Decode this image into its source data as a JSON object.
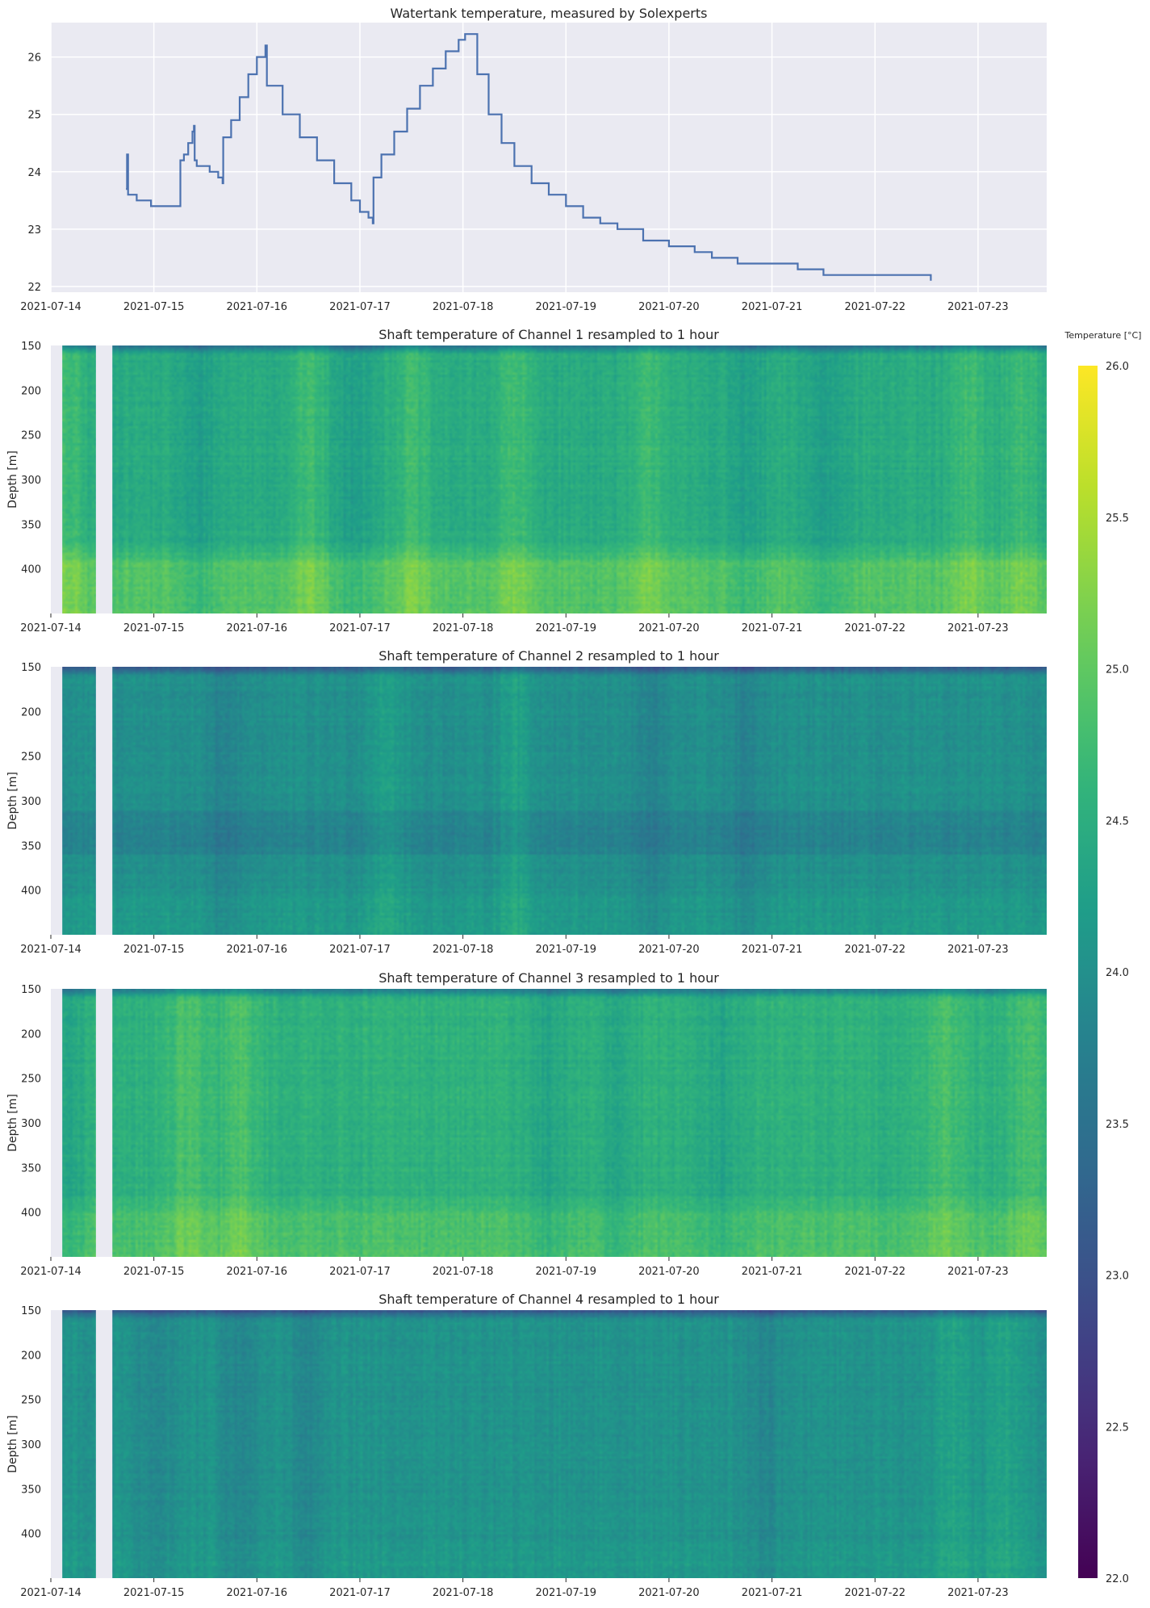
{
  "chart_data": [
    {
      "type": "line",
      "title": "Watertank temperature, measured by Solexperts",
      "xlabel": "",
      "ylabel": "",
      "xlim": [
        "2021-07-14",
        "2021-07-23 16:00"
      ],
      "ylim": [
        21.9,
        26.6
      ],
      "x_ticks": [
        "2021-07-14",
        "2021-07-15",
        "2021-07-16",
        "2021-07-17",
        "2021-07-18",
        "2021-07-19",
        "2021-07-20",
        "2021-07-21",
        "2021-07-22",
        "2021-07-23"
      ],
      "y_ticks": [
        "22",
        "23",
        "24",
        "25",
        "26"
      ],
      "grid": true,
      "series": [
        {
          "color": "#4c72b0",
          "points": [
            [
              "2021-07-14 17:30",
              23.7
            ],
            [
              "2021-07-14 17:45",
              24.3
            ],
            [
              "2021-07-14 18:00",
              23.6
            ],
            [
              "2021-07-14 19:30",
              23.6
            ],
            [
              "2021-07-14 20:00",
              23.5
            ],
            [
              "2021-07-14 23:00",
              23.5
            ],
            [
              "2021-07-14 23:20",
              23.4
            ],
            [
              "2021-07-15 06:00",
              23.4
            ],
            [
              "2021-07-15 06:10",
              24.2
            ],
            [
              "2021-07-15 07:00",
              24.3
            ],
            [
              "2021-07-15 08:00",
              24.5
            ],
            [
              "2021-07-15 09:00",
              24.7
            ],
            [
              "2021-07-15 09:20",
              24.8
            ],
            [
              "2021-07-15 09:30",
              24.2
            ],
            [
              "2021-07-15 10:00",
              24.1
            ],
            [
              "2021-07-15 12:00",
              24.1
            ],
            [
              "2021-07-15 13:00",
              24.0
            ],
            [
              "2021-07-15 15:00",
              23.9
            ],
            [
              "2021-07-15 16:00",
              23.8
            ],
            [
              "2021-07-15 16:10",
              24.6
            ],
            [
              "2021-07-15 18:00",
              24.9
            ],
            [
              "2021-07-15 20:00",
              25.3
            ],
            [
              "2021-07-15 22:00",
              25.7
            ],
            [
              "2021-07-16 00:00",
              26.0
            ],
            [
              "2021-07-16 02:00",
              26.2
            ],
            [
              "2021-07-16 02:20",
              25.5
            ],
            [
              "2021-07-16 06:00",
              25.0
            ],
            [
              "2021-07-16 10:00",
              24.6
            ],
            [
              "2021-07-16 14:00",
              24.2
            ],
            [
              "2021-07-16 18:00",
              23.8
            ],
            [
              "2021-07-16 22:00",
              23.5
            ],
            [
              "2021-07-17 00:00",
              23.3
            ],
            [
              "2021-07-17 02:00",
              23.2
            ],
            [
              "2021-07-17 03:00",
              23.1
            ],
            [
              "2021-07-17 03:10",
              23.9
            ],
            [
              "2021-07-17 05:00",
              24.3
            ],
            [
              "2021-07-17 08:00",
              24.7
            ],
            [
              "2021-07-17 11:00",
              25.1
            ],
            [
              "2021-07-17 14:00",
              25.5
            ],
            [
              "2021-07-17 17:00",
              25.8
            ],
            [
              "2021-07-17 20:00",
              26.1
            ],
            [
              "2021-07-17 23:00",
              26.3
            ],
            [
              "2021-07-18 00:30",
              26.4
            ],
            [
              "2021-07-18 03:00",
              26.4
            ],
            [
              "2021-07-18 03:20",
              25.7
            ],
            [
              "2021-07-18 06:00",
              25.0
            ],
            [
              "2021-07-18 09:00",
              24.5
            ],
            [
              "2021-07-18 12:00",
              24.1
            ],
            [
              "2021-07-18 16:00",
              23.8
            ],
            [
              "2021-07-18 20:00",
              23.6
            ],
            [
              "2021-07-19 00:00",
              23.4
            ],
            [
              "2021-07-19 04:00",
              23.2
            ],
            [
              "2021-07-19 08:00",
              23.1
            ],
            [
              "2021-07-19 12:00",
              23.0
            ],
            [
              "2021-07-19 18:00",
              22.8
            ],
            [
              "2021-07-20 00:00",
              22.7
            ],
            [
              "2021-07-20 06:00",
              22.6
            ],
            [
              "2021-07-20 10:00",
              22.5
            ],
            [
              "2021-07-20 16:00",
              22.4
            ],
            [
              "2021-07-21 02:00",
              22.4
            ],
            [
              "2021-07-21 06:00",
              22.3
            ],
            [
              "2021-07-21 12:00",
              22.2
            ],
            [
              "2021-07-22 00:00",
              22.2
            ],
            [
              "2021-07-22 12:00",
              22.2
            ],
            [
              "2021-07-22 13:00",
              22.1
            ]
          ]
        }
      ]
    },
    {
      "type": "heatmap",
      "title": "Shaft temperature of Channel 1 resampled to 1 hour",
      "xlabel": "",
      "ylabel": "Depth [m]",
      "xlim": [
        "2021-07-14",
        "2021-07-23 16:00"
      ],
      "ylim": [
        450,
        150
      ],
      "x_ticks": [
        "2021-07-14",
        "2021-07-15",
        "2021-07-16",
        "2021-07-17",
        "2021-07-18",
        "2021-07-19",
        "2021-07-20",
        "2021-07-21",
        "2021-07-22",
        "2021-07-23"
      ],
      "y_ticks": [
        "150",
        "200",
        "250",
        "300",
        "350",
        "400"
      ],
      "missing_intervals": [
        [
          "2021-07-14 00:00",
          "2021-07-14 02:40"
        ],
        [
          "2021-07-14 10:30",
          "2021-07-14 14:20"
        ]
      ],
      "value_range": [
        22.0,
        26.0
      ],
      "mean_temperature": 24.45,
      "depth_profile": {
        "top_c": 23.5,
        "lower_depth_m": 370,
        "lower_offset_c": 0.45
      },
      "warm_dates": [
        "2021-07-14 04:00",
        "2021-07-16 12:00",
        "2021-07-17 12:00",
        "2021-07-18 12:00",
        "2021-07-19 20:00",
        "2021-07-22 22:00",
        "2021-07-23 10:00"
      ],
      "cool_dates": [
        "2021-07-15 10:00",
        "2021-07-16 22:00",
        "2021-07-20 18:00",
        "2021-07-21 12:00"
      ]
    },
    {
      "type": "heatmap",
      "title": "Shaft temperature of Channel 2 resampled to 1 hour",
      "xlabel": "",
      "ylabel": "Depth [m]",
      "xlim": [
        "2021-07-14",
        "2021-07-23 16:00"
      ],
      "ylim": [
        450,
        150
      ],
      "x_ticks": [
        "2021-07-14",
        "2021-07-15",
        "2021-07-16",
        "2021-07-17",
        "2021-07-18",
        "2021-07-19",
        "2021-07-20",
        "2021-07-21",
        "2021-07-22",
        "2021-07-23"
      ],
      "y_ticks": [
        "150",
        "200",
        "250",
        "300",
        "350",
        "400"
      ],
      "missing_intervals": [
        [
          "2021-07-14 00:00",
          "2021-07-14 02:40"
        ],
        [
          "2021-07-14 10:30",
          "2021-07-14 14:20"
        ]
      ],
      "value_range": [
        22.0,
        26.0
      ],
      "mean_temperature": 24.0,
      "depth_profile": {
        "top_c": 23.0,
        "cool_band_m": [
          310,
          360
        ],
        "cool_band_offset_c": -0.2,
        "lower_depth_m": 390,
        "lower_offset_c": 0.15
      },
      "warm_dates": [
        "2021-07-17 06:00",
        "2021-07-18 12:00"
      ],
      "cool_dates": [
        "2021-07-15 16:00",
        "2021-07-19 20:00",
        "2021-07-20 18:00"
      ]
    },
    {
      "type": "heatmap",
      "title": "Shaft temperature of Channel 3 resampled to 1 hour",
      "xlabel": "",
      "ylabel": "Depth [m]",
      "xlim": [
        "2021-07-14",
        "2021-07-23 16:00"
      ],
      "ylim": [
        450,
        150
      ],
      "x_ticks": [
        "2021-07-14",
        "2021-07-15",
        "2021-07-16",
        "2021-07-17",
        "2021-07-18",
        "2021-07-19",
        "2021-07-20",
        "2021-07-21",
        "2021-07-22",
        "2021-07-23"
      ],
      "y_ticks": [
        "150",
        "200",
        "250",
        "300",
        "350",
        "400"
      ],
      "missing_intervals": [
        [
          "2021-07-14 00:00",
          "2021-07-14 02:40"
        ],
        [
          "2021-07-14 10:30",
          "2021-07-14 14:20"
        ]
      ],
      "value_range": [
        22.0,
        26.0
      ],
      "mean_temperature": 24.55,
      "depth_profile": {
        "top_c": 23.6,
        "lower_depth_m": 380,
        "lower_offset_c": 0.3
      },
      "warm_dates": [
        "2021-07-15 08:00",
        "2021-07-15 20:00",
        "2021-07-22 16:00",
        "2021-07-23 12:00"
      ],
      "cool_dates": [
        "2021-07-14 04:00",
        "2021-07-18 20:00",
        "2021-07-19 12:00",
        "2021-07-20 12:00"
      ]
    },
    {
      "type": "heatmap",
      "title": "Shaft temperature of Channel 4 resampled to 1 hour",
      "xlabel": "",
      "ylabel": "Depth [m]",
      "xlim": [
        "2021-07-14",
        "2021-07-23 16:00"
      ],
      "ylim": [
        450,
        150
      ],
      "x_ticks": [
        "2021-07-14",
        "2021-07-15",
        "2021-07-16",
        "2021-07-17",
        "2021-07-18",
        "2021-07-19",
        "2021-07-20",
        "2021-07-21",
        "2021-07-22",
        "2021-07-23"
      ],
      "y_ticks": [
        "150",
        "200",
        "250",
        "300",
        "350",
        "400"
      ],
      "missing_intervals": [
        [
          "2021-07-14 00:00",
          "2021-07-14 02:40"
        ],
        [
          "2021-07-14 10:30",
          "2021-07-14 14:20"
        ]
      ],
      "value_range": [
        22.0,
        26.0
      ],
      "mean_temperature": 24.05,
      "depth_profile": {
        "top_c": 23.0,
        "lower_depth_m": 400,
        "lower_offset_c": 0.1
      },
      "warm_dates": [
        "2021-07-22 18:00",
        "2021-07-23 06:00"
      ],
      "cool_dates": [
        "2021-07-15 00:00",
        "2021-07-15 20:00",
        "2021-07-16 12:00",
        "2021-07-20 22:00"
      ]
    }
  ],
  "colorbar": {
    "label": "Temperature [°C]",
    "colormap": "viridis",
    "range": [
      22.0,
      26.0
    ],
    "ticks": [
      "22.0",
      "22.5",
      "23.0",
      "23.5",
      "24.0",
      "24.5",
      "25.0",
      "25.5",
      "26.0"
    ]
  },
  "colors": {
    "axes_bg": "#eaeaf2",
    "grid": "#ffffff",
    "missing": "#eaeaf2"
  }
}
